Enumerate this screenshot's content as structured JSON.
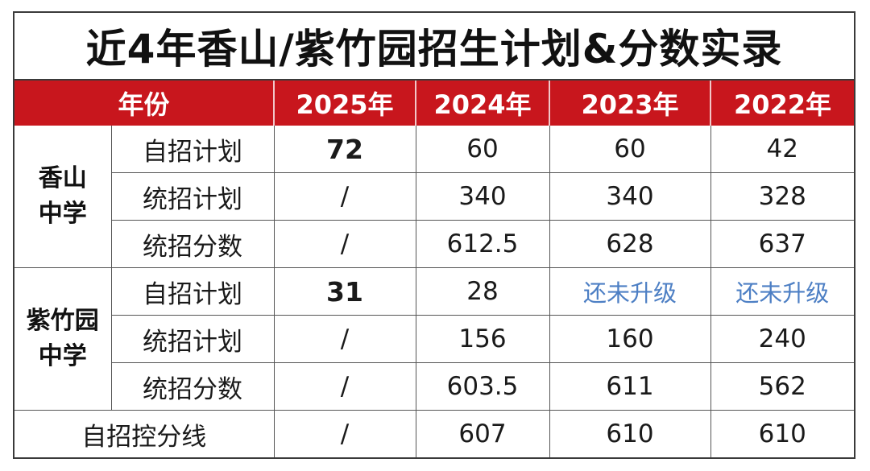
{
  "title": "近4年香山/紫竹园招生计划&分数实录",
  "header": {
    "col0": "年份",
    "years": [
      "2025年",
      "2024年",
      "2023年",
      "2022年"
    ]
  },
  "xiangshan": {
    "name_line1": "香山",
    "name_line2": "中学",
    "rows": [
      {
        "label": "自招计划",
        "values": [
          "72",
          "60",
          "60",
          "42"
        ]
      },
      {
        "label": "统招计划",
        "values": [
          "/",
          "340",
          "340",
          "328"
        ]
      },
      {
        "label": "统招分数",
        "values": [
          "/",
          "612.5",
          "628",
          "637"
        ]
      }
    ]
  },
  "zizhuyuan": {
    "name_line1": "紫竹园",
    "name_line2": "中学",
    "rows": [
      {
        "label": "自招计划",
        "values": [
          "31",
          "28",
          "还未升级",
          "还未升级"
        ]
      },
      {
        "label": "统招计划",
        "values": [
          "/",
          "156",
          "160",
          "240"
        ]
      },
      {
        "label": "统招分数",
        "values": [
          "/",
          "603.5",
          "611",
          "562"
        ]
      }
    ]
  },
  "control_line": {
    "label": "自招控分线",
    "values": [
      "/",
      "607",
      "610",
      "610"
    ]
  },
  "colors": {
    "header_bg": "#c8161d",
    "note_blue": "#4d7fc4"
  }
}
